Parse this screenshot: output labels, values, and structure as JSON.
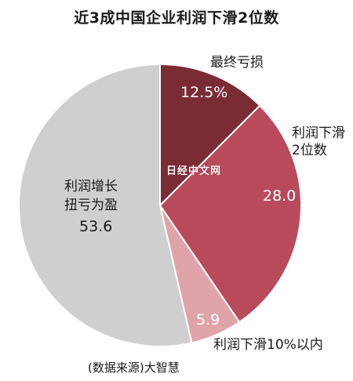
{
  "chart_data": {
    "type": "pie",
    "title": "近3成中国企业利润下滑2位数",
    "slices": [
      {
        "label": "最终亏损",
        "value": 12.5,
        "value_label": "12.5%",
        "color": "#7a2c35"
      },
      {
        "label": "利润下滑2位数",
        "value": 28.0,
        "value_label": "28.0",
        "color": "#b94a5c"
      },
      {
        "label": "利润下滑10%以内",
        "value": 5.9,
        "value_label": "5.9",
        "color": "#e0a3a8"
      },
      {
        "label": "利润增长扭亏为盈",
        "value": 53.6,
        "value_label": "53.6",
        "color": "#cfcfcf"
      }
    ],
    "start_at": "top, clockwise"
  },
  "labels": {
    "s0_name": "最终亏损",
    "s1_name_line1": "利润下滑",
    "s1_name_line2": "2位数",
    "s2_name": "利润下滑10%以内",
    "s3_name_line1": "利润增长",
    "s3_name_line2": "扭亏为盈"
  },
  "watermark": "日经中文网",
  "source": "(数据来源)大智慧"
}
